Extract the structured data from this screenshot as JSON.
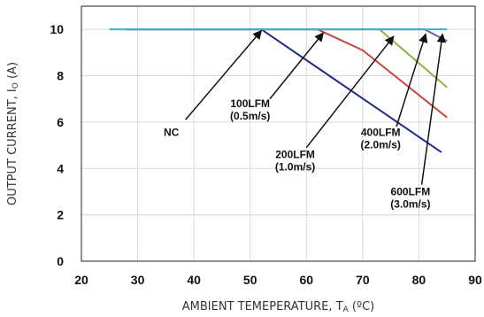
{
  "chart_data": {
    "type": "line",
    "title": "",
    "xlabel": "AMBIENT TEMEPERATURE, T",
    "xlabel_sub": "A",
    "xlabel_unit": " (ºC)",
    "ylabel": "OUTPUT CURRENT, I",
    "ylabel_sub": "O",
    "ylabel_unit": " (A)",
    "xlim": [
      20,
      90
    ],
    "ylim": [
      0,
      11
    ],
    "xticks": [
      20,
      30,
      40,
      50,
      60,
      70,
      80,
      90
    ],
    "yticks": [
      0,
      2,
      4,
      6,
      8,
      10
    ],
    "grid": true,
    "series": [
      {
        "name": "NC",
        "color": "#1f2a8a",
        "x": [
          28,
          52,
          84
        ],
        "y": [
          10,
          10,
          4.7
        ]
      },
      {
        "name": "100LFM (0.5m/s)",
        "color": "#c9463d",
        "x": [
          28,
          62,
          70,
          85
        ],
        "y": [
          10,
          10,
          9.1,
          6.2
        ]
      },
      {
        "name": "200LFM (1.0m/s)",
        "color": "#8cb53f",
        "x": [
          28,
          73,
          85
        ],
        "y": [
          10,
          10,
          7.5
        ]
      },
      {
        "name": "400LFM (2.0m/s)",
        "color": "#7b5ea7",
        "x": [
          28,
          81,
          85
        ],
        "y": [
          10,
          10,
          9.5
        ]
      },
      {
        "name": "600LFM (3.0m/s)",
        "color": "#4bacc6",
        "x": [
          25,
          85
        ],
        "y": [
          10,
          10
        ]
      }
    ],
    "annotations": [
      {
        "lines": [
          "NC"
        ],
        "text_x": 36,
        "text_y": 5.4,
        "from_x": 38.5,
        "from_y": 6.1,
        "to_x": 52,
        "to_y": 9.95
      },
      {
        "lines": [
          "100LFM",
          "(0.5m/s)"
        ],
        "text_x": 50,
        "text_y": 6.65,
        "from_x": 53.5,
        "from_y": 7.0,
        "to_x": 63,
        "to_y": 9.85
      },
      {
        "lines": [
          "200LFM",
          "(1.0m/s)"
        ],
        "text_x": 58,
        "text_y": 4.45,
        "from_x": 60,
        "from_y": 4.9,
        "to_x": 75.5,
        "to_y": 9.7
      },
      {
        "lines": [
          "400LFM",
          "(2.0m/s)"
        ],
        "text_x": 73.2,
        "text_y": 5.4,
        "from_x": 76,
        "from_y": 5.8,
        "to_x": 81.2,
        "to_y": 9.8
      },
      {
        "lines": [
          "600LFM",
          "(3.0m/s)"
        ],
        "text_x": 78.5,
        "text_y": 2.85,
        "from_x": 80.5,
        "from_y": 3.3,
        "to_x": 84.2,
        "to_y": 9.8
      }
    ]
  }
}
